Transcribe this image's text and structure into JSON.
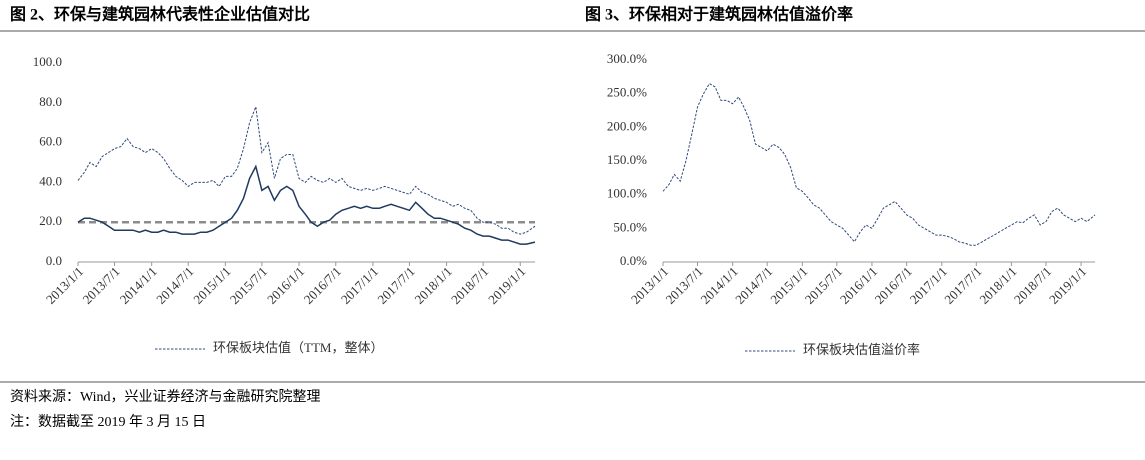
{
  "chart_data": [
    {
      "type": "line",
      "title": "图 2、环保与建筑园林代表性企业估值对比",
      "x": [
        "2013/1/1",
        "2013/2/1",
        "2013/3/1",
        "2013/4/1",
        "2013/5/1",
        "2013/6/1",
        "2013/7/1",
        "2013/8/1",
        "2013/9/1",
        "2013/10/1",
        "2013/11/1",
        "2013/12/1",
        "2014/1/1",
        "2014/2/1",
        "2014/3/1",
        "2014/4/1",
        "2014/5/1",
        "2014/6/1",
        "2014/7/1",
        "2014/8/1",
        "2014/9/1",
        "2014/10/1",
        "2014/11/1",
        "2014/12/1",
        "2015/1/1",
        "2015/2/1",
        "2015/3/1",
        "2015/4/1",
        "2015/5/1",
        "2015/6/1",
        "2015/7/1",
        "2015/8/1",
        "2015/9/1",
        "2015/10/1",
        "2015/11/1",
        "2015/12/1",
        "2016/1/1",
        "2016/2/1",
        "2016/3/1",
        "2016/4/1",
        "2016/5/1",
        "2016/6/1",
        "2016/7/1",
        "2016/8/1",
        "2016/9/1",
        "2016/10/1",
        "2016/11/1",
        "2016/12/1",
        "2017/1/1",
        "2017/2/1",
        "2017/3/1",
        "2017/4/1",
        "2017/5/1",
        "2017/6/1",
        "2017/7/1",
        "2017/8/1",
        "2017/9/1",
        "2017/10/1",
        "2017/11/1",
        "2017/12/1",
        "2018/1/1",
        "2018/2/1",
        "2018/3/1",
        "2018/4/1",
        "2018/5/1",
        "2018/6/1",
        "2018/7/1",
        "2018/8/1",
        "2018/9/1",
        "2018/10/1",
        "2018/11/1",
        "2018/12/1",
        "2019/1/1",
        "2019/2/1",
        "2019/3/15"
      ],
      "series": [
        {
          "name": "环保板块估值（TTM，整体）",
          "color": "#2e4a7a",
          "line_style": "dashed",
          "values": [
            41,
            45,
            50,
            48,
            53,
            55,
            57,
            58,
            62,
            58,
            57,
            55,
            57,
            55,
            52,
            47,
            43,
            41,
            38,
            40,
            40,
            40,
            41,
            38,
            43,
            43,
            47,
            57,
            70,
            78,
            55,
            60,
            42,
            52,
            54,
            54,
            42,
            40,
            43,
            41,
            40,
            42,
            40,
            42,
            38,
            37,
            36,
            37,
            36,
            37,
            38,
            37,
            36,
            35,
            34,
            38,
            35,
            34,
            32,
            31,
            30,
            28,
            29,
            27,
            26,
            22,
            20,
            20,
            19,
            17,
            17,
            15,
            14,
            15,
            18
          ]
        },
        {
          "color": "#1f3a5f",
          "line_style": "solid",
          "values": [
            20,
            22,
            22,
            21,
            20,
            18,
            16,
            16,
            16,
            16,
            15,
            16,
            15,
            15,
            16,
            15,
            15,
            14,
            14,
            14,
            15,
            15,
            16,
            18,
            20,
            22,
            26,
            32,
            42,
            48,
            36,
            38,
            31,
            36,
            38,
            36,
            28,
            24,
            20,
            18,
            20,
            21,
            24,
            26,
            27,
            28,
            27,
            28,
            27,
            27,
            28,
            29,
            28,
            27,
            26,
            30,
            27,
            24,
            22,
            22,
            21,
            20,
            19,
            17,
            16,
            14,
            13,
            13,
            12,
            11,
            11,
            10,
            9,
            9,
            10
          ]
        }
      ],
      "reference_line": {
        "value": 20,
        "color": "#8c8c8c"
      },
      "xlim": [
        "2013/1/1",
        "2019/3/15"
      ],
      "xticks": [
        "2013/1/1",
        "2013/7/1",
        "2014/1/1",
        "2014/7/1",
        "2015/1/1",
        "2015/7/1",
        "2016/1/1",
        "2016/7/1",
        "2017/1/1",
        "2017/7/1",
        "2018/1/1",
        "2018/7/1",
        "2019/1/1"
      ],
      "ylim": [
        0,
        100
      ],
      "yticks": [
        {
          "value": 0,
          "label": "0.0"
        },
        {
          "value": 20,
          "label": "20.0"
        },
        {
          "value": 40,
          "label": "40.0"
        },
        {
          "value": 60,
          "label": "60.0"
        },
        {
          "value": 80,
          "label": "80.0"
        },
        {
          "value": 100,
          "label": "100.0"
        }
      ]
    },
    {
      "type": "line",
      "title": "图 3、环保相对于建筑园林估值溢价率",
      "x": [
        "2013/1/1",
        "2013/2/1",
        "2013/3/1",
        "2013/4/1",
        "2013/5/1",
        "2013/6/1",
        "2013/7/1",
        "2013/8/1",
        "2013/9/1",
        "2013/10/1",
        "2013/11/1",
        "2013/12/1",
        "2014/1/1",
        "2014/2/1",
        "2014/3/1",
        "2014/4/1",
        "2014/5/1",
        "2014/6/1",
        "2014/7/1",
        "2014/8/1",
        "2014/9/1",
        "2014/10/1",
        "2014/11/1",
        "2014/12/1",
        "2015/1/1",
        "2015/2/1",
        "2015/3/1",
        "2015/4/1",
        "2015/5/1",
        "2015/6/1",
        "2015/7/1",
        "2015/8/1",
        "2015/9/1",
        "2015/10/1",
        "2015/11/1",
        "2015/12/1",
        "2016/1/1",
        "2016/2/1",
        "2016/3/1",
        "2016/4/1",
        "2016/5/1",
        "2016/6/1",
        "2016/7/1",
        "2016/8/1",
        "2016/9/1",
        "2016/10/1",
        "2016/11/1",
        "2016/12/1",
        "2017/1/1",
        "2017/2/1",
        "2017/3/1",
        "2017/4/1",
        "2017/5/1",
        "2017/6/1",
        "2017/7/1",
        "2017/8/1",
        "2017/9/1",
        "2017/10/1",
        "2017/11/1",
        "2017/12/1",
        "2018/1/1",
        "2018/2/1",
        "2018/3/1",
        "2018/4/1",
        "2018/5/1",
        "2018/6/1",
        "2018/7/1",
        "2018/8/1",
        "2018/9/1",
        "2018/10/1",
        "2018/11/1",
        "2018/12/1",
        "2019/1/1",
        "2019/2/1",
        "2019/3/15"
      ],
      "series": [
        {
          "name": "环保板块估值溢价率",
          "color": "#2e4a7a",
          "line_style": "dashed",
          "values": [
            105,
            115,
            130,
            120,
            150,
            190,
            230,
            250,
            265,
            260,
            240,
            240,
            235,
            245,
            230,
            210,
            175,
            170,
            165,
            175,
            170,
            160,
            140,
            110,
            105,
            95,
            85,
            80,
            70,
            60,
            55,
            50,
            40,
            30,
            45,
            55,
            50,
            65,
            80,
            85,
            90,
            80,
            70,
            65,
            55,
            50,
            45,
            40,
            40,
            38,
            35,
            30,
            28,
            25,
            25,
            30,
            35,
            40,
            45,
            50,
            55,
            60,
            58,
            65,
            70,
            55,
            60,
            75,
            80,
            70,
            65,
            60,
            65,
            60,
            70
          ]
        }
      ],
      "xlim": [
        "2013/1/1",
        "2019/3/15"
      ],
      "xticks": [
        "2013/1/1",
        "2013/7/1",
        "2014/1/1",
        "2014/7/1",
        "2015/1/1",
        "2015/7/1",
        "2016/1/1",
        "2016/7/1",
        "2017/1/1",
        "2017/7/1",
        "2018/1/1",
        "2018/7/1",
        "2019/1/1"
      ],
      "ylim": [
        0,
        300
      ],
      "yticks": [
        {
          "value": 0,
          "label": "0.0%"
        },
        {
          "value": 50,
          "label": "50.0%"
        },
        {
          "value": 100,
          "label": "100.0%"
        },
        {
          "value": 150,
          "label": "150.0%"
        },
        {
          "value": 200,
          "label": "200.0%"
        },
        {
          "value": 250,
          "label": "250.0%"
        },
        {
          "value": 300,
          "label": "300.0%"
        }
      ]
    }
  ],
  "notes": [
    "资料来源：Wind，兴业证券经济与金融研究院整理",
    "注：数据截至 2019 年 3 月 15 日"
  ]
}
